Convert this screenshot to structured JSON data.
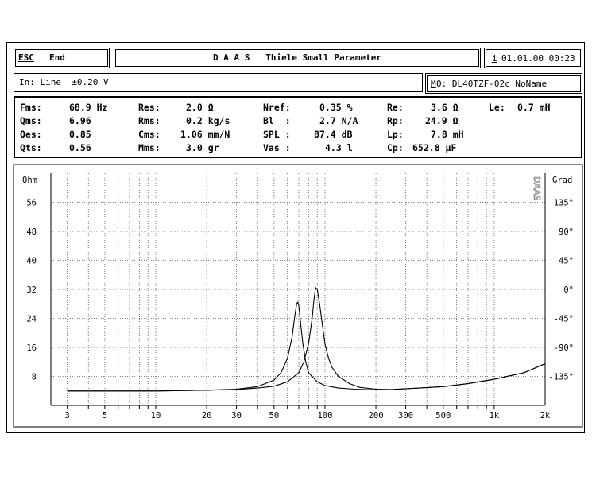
{
  "header": {
    "esc_label": "ESC",
    "end_label": "End",
    "title": "D A A S   Thiele Small Parameter",
    "info_key": "i",
    "datetime": "01.01.00 00:23"
  },
  "status": {
    "input_label": "In: Line  ±0.20 V",
    "memory_key": "M",
    "memory_label": "0: DL40TZF-02c NoName"
  },
  "parameters": [
    {
      "name": "Fms:",
      "value": "68.9 Hz"
    },
    {
      "name": "Qms:",
      "value": "6.96"
    },
    {
      "name": "Qes:",
      "value": "0.85"
    },
    {
      "name": "Qts:",
      "value": "0.56"
    },
    {
      "name": "Res:",
      "value": "2.0 Ω"
    },
    {
      "name": "Rms:",
      "value": "0.2 kg/s"
    },
    {
      "name": "Cms:",
      "value": "1.06 mm/N"
    },
    {
      "name": "Mms:",
      "value": "3.0 gr"
    },
    {
      "name": "Nref:",
      "value": "0.35 %"
    },
    {
      "name": "Bl  :",
      "value": "2.7 N/A"
    },
    {
      "name": "SPL :",
      "value": "87.4 dB"
    },
    {
      "name": "Vas :",
      "value": "4.3 l"
    },
    {
      "name": "Re:",
      "value": "3.6 Ω"
    },
    {
      "name": "Rp:",
      "value": "24.9 Ω"
    },
    {
      "name": "Lp:",
      "value": "7.8 mH"
    },
    {
      "name": "Cp:",
      "value": "652.8 µF"
    },
    {
      "name": "Le:",
      "value": "0.7 mH"
    }
  ],
  "chart_data": {
    "type": "line",
    "xscale": "log",
    "xlim": [
      2.4,
      2000
    ],
    "x_ticks": [
      {
        "value": 3,
        "label": "3"
      },
      {
        "value": 5,
        "label": "5"
      },
      {
        "value": 10,
        "label": "10"
      },
      {
        "value": 20,
        "label": "20"
      },
      {
        "value": 30,
        "label": "30"
      },
      {
        "value": 50,
        "label": "50"
      },
      {
        "value": 100,
        "label": "100"
      },
      {
        "value": 200,
        "label": "200"
      },
      {
        "value": 300,
        "label": "300"
      },
      {
        "value": 500,
        "label": "500"
      },
      {
        "value": 1000,
        "label": "1k"
      },
      {
        "value": 2000,
        "label": "2k"
      }
    ],
    "y_left": {
      "unit_label": "Ohm",
      "ylim": [
        0,
        64
      ],
      "ticks": [
        8,
        16,
        24,
        32,
        40,
        48,
        56
      ]
    },
    "y_right": {
      "unit_label": "Grad",
      "ticks": [
        {
          "value": 135,
          "label": "135°"
        },
        {
          "value": 90,
          "label": "90°"
        },
        {
          "value": 45,
          "label": "45°"
        },
        {
          "value": 0,
          "label": "0°"
        },
        {
          "value": -45,
          "label": "-45°"
        },
        {
          "value": -90,
          "label": "-90°"
        },
        {
          "value": -135,
          "label": "-135°"
        }
      ]
    },
    "side_label": "DAAS",
    "grid": true,
    "series": [
      {
        "x": [
          3,
          5,
          10,
          20,
          30,
          40,
          50,
          55,
          60,
          64,
          66,
          68,
          69,
          70,
          72,
          74,
          77,
          80,
          90,
          100,
          120,
          150,
          200,
          250,
          300,
          500,
          700,
          1000,
          1500,
          2000
        ],
        "y": [
          4.0,
          4.0,
          4.0,
          4.2,
          4.5,
          5.2,
          7.0,
          9.0,
          13.0,
          19.0,
          24.0,
          28.0,
          28.5,
          27.5,
          22.0,
          17.0,
          12.0,
          9.0,
          6.5,
          5.5,
          4.8,
          4.5,
          4.3,
          4.4,
          4.6,
          5.2,
          6.0,
          7.2,
          9.0,
          11.5
        ]
      },
      {
        "x": [
          3,
          5,
          10,
          20,
          30,
          40,
          50,
          60,
          70,
          75,
          80,
          84,
          86,
          88,
          90,
          93,
          96,
          100,
          105,
          110,
          120,
          140,
          160,
          200,
          250,
          300,
          500,
          700,
          1000,
          1500,
          2000
        ],
        "y": [
          4.0,
          4.0,
          4.0,
          4.2,
          4.4,
          4.8,
          5.3,
          6.5,
          9.0,
          12.0,
          17.0,
          24.0,
          29.0,
          32.5,
          32.0,
          28.0,
          23.0,
          17.0,
          13.0,
          10.5,
          8.0,
          6.0,
          5.0,
          4.5,
          4.4,
          4.6,
          5.2,
          6.0,
          7.2,
          9.0,
          11.5
        ]
      }
    ]
  }
}
